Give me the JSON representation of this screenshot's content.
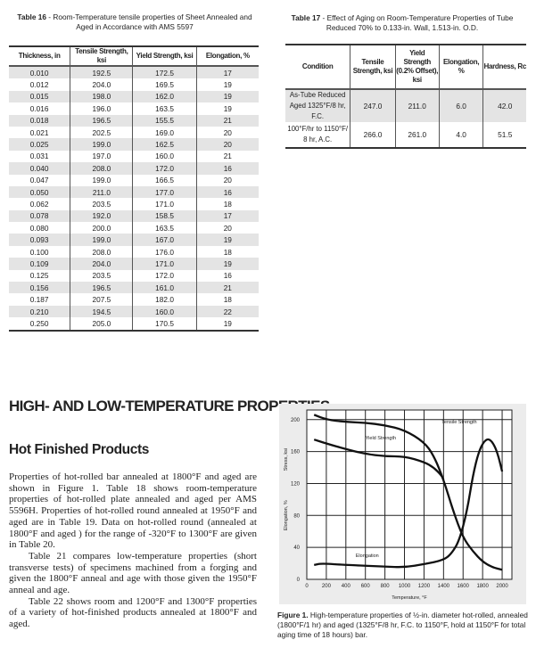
{
  "table16": {
    "label": "Table 16",
    "title": " - Room-Temperature tensile properties of Sheet Annealed and Aged in Accordance with AMS 5597",
    "headers": [
      "Thickness, in",
      "Tensile Strength, ksi",
      "Yield Strength, ksi",
      "Elongation, %"
    ],
    "rows": [
      [
        "0.010",
        "192.5",
        "172.5",
        "17"
      ],
      [
        "0.012",
        "204.0",
        "169.5",
        "19"
      ],
      [
        "0.015",
        "198.0",
        "162.0",
        "19"
      ],
      [
        "0.016",
        "196.0",
        "163.5",
        "19"
      ],
      [
        "0.018",
        "196.5",
        "155.5",
        "21"
      ],
      [
        "0.021",
        "202.5",
        "169.0",
        "20"
      ],
      [
        "0.025",
        "199.0",
        "162.5",
        "20"
      ],
      [
        "0.031",
        "197.0",
        "160.0",
        "21"
      ],
      [
        "0.040",
        "208.0",
        "172.0",
        "16"
      ],
      [
        "0.047",
        "199.0",
        "166.5",
        "20"
      ],
      [
        "0.050",
        "211.0",
        "177.0",
        "16"
      ],
      [
        "0.062",
        "203.5",
        "171.0",
        "18"
      ],
      [
        "0.078",
        "192.0",
        "158.5",
        "17"
      ],
      [
        "0.080",
        "200.0",
        "163.5",
        "20"
      ],
      [
        "0.093",
        "199.0",
        "167.0",
        "19"
      ],
      [
        "0.100",
        "208.0",
        "176.0",
        "18"
      ],
      [
        "0.109",
        "204.0",
        "171.0",
        "19"
      ],
      [
        "0.125",
        "203.5",
        "172.0",
        "16"
      ],
      [
        "0.156",
        "196.5",
        "161.0",
        "21"
      ],
      [
        "0.187",
        "207.5",
        "182.0",
        "18"
      ],
      [
        "0.210",
        "194.5",
        "160.0",
        "22"
      ],
      [
        "0.250",
        "205.0",
        "170.5",
        "19"
      ]
    ]
  },
  "table17": {
    "label": "Table 17",
    "title": " - Effect of Aging on Room-Temperature Properties of Tube Reduced 70% to 0.133-in. Wall, 1.513-in. O.D.",
    "headers": [
      "Condition",
      "Tensile Strength, ksi",
      "Yield Strength (0.2% Offset), ksi",
      "Elongation, %",
      "Hardness, Rc"
    ],
    "rows": [
      [
        "As-Tube Reduced Aged 1325°F/8 hr, F.C.",
        "247.0",
        "211.0",
        "6.0",
        "42.0"
      ],
      [
        "100°F/hr to 1150°F/ 8 hr, A.C.",
        "266.0",
        "261.0",
        "4.0",
        "51.5"
      ]
    ]
  },
  "section_heading": "HIGH- AND LOW-TEMPERATURE PROPERTIES",
  "subheading": "Hot Finished Products",
  "paragraphs": [
    "Properties of hot-rolled bar annealed at 1800°F and aged are shown in Figure 1. Table 18 shows room-temperature properties of hot-rolled plate annealed and aged per AMS 5596H. Properties of hot-rolled round annealed at 1950°F and aged are in Table 19. Data on hot-rolled round (annealed at 1800°F and aged ) for the range of -320°F to 1300°F are given in Table 20.",
    "Table 21 compares low-temperature properties (short transverse tests) of specimens machined from a forging and given the 1800°F anneal and age with those given the 1950°F anneal and age.",
    "Table 22 shows room and 1200°F and 1300°F properties of a variety of hot-finished products annealed at 1800°F and aged."
  ],
  "figure": {
    "label": "Figure 1.",
    "caption": " High-temperature properties of ½-in. diameter hot-rolled, annealed (1800°F/1 hr) and aged (1325°F/8 hr, F.C. to 1150°F, hold at 1150°F for total aging time of 18 hours) bar."
  },
  "chart_data": {
    "type": "line",
    "xlabel": "Temperature, °F",
    "ylabel_stress": "Stress, ksi",
    "ylabel_elong": "Elongation, %",
    "xlim": [
      0,
      2100
    ],
    "ylim": [
      0,
      212
    ],
    "xticks": [
      0,
      200,
      400,
      600,
      800,
      1000,
      1200,
      1400,
      1600,
      1800,
      2000
    ],
    "yticks": [
      0,
      40,
      80,
      120,
      160,
      200
    ],
    "series": [
      {
        "name": "Tensile Strength",
        "x": [
          75,
          200,
          400,
          600,
          800,
          1000,
          1200,
          1300,
          1400,
          1500,
          1600,
          1700,
          1800,
          1900,
          2000
        ],
        "y": [
          206,
          200,
          197,
          196,
          193,
          187,
          172,
          155,
          125,
          85,
          52,
          35,
          22,
          15,
          12
        ]
      },
      {
        "name": "Yield Strength",
        "x": [
          75,
          200,
          400,
          600,
          800,
          1000,
          1200,
          1300,
          1380,
          1400
        ],
        "y": [
          175,
          170,
          163,
          157,
          154,
          154,
          147,
          140,
          130,
          125
        ]
      },
      {
        "name": "Elongation",
        "x": [
          75,
          150,
          400,
          800,
          1000,
          1200,
          1400,
          1480,
          1560,
          1640,
          1700,
          1760,
          1820,
          1870,
          1920,
          1960,
          2000
        ],
        "y": [
          18,
          20,
          18,
          16,
          15,
          19,
          24,
          32,
          48,
          85,
          130,
          160,
          174,
          176,
          168,
          155,
          135
        ]
      }
    ],
    "labels": {
      "tensile": "Tensile Strength",
      "yield": "Yield Strength",
      "elongation": "Elongation"
    }
  }
}
